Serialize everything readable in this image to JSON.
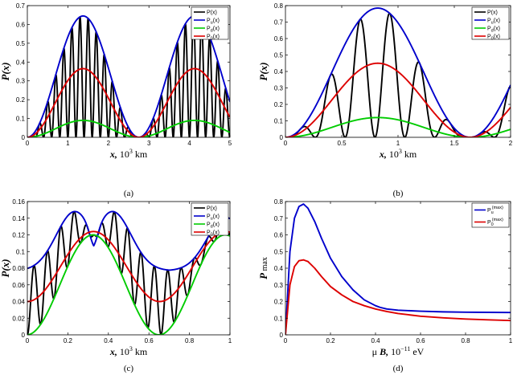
{
  "chart_data": [
    {
      "type": "line",
      "id": "a",
      "caption": "(a)",
      "xlabel": "x,  10³ km",
      "ylabel": "P(x)",
      "xlim": [
        0,
        5
      ],
      "ylim": [
        0,
        0.7
      ],
      "xticks": [
        "0",
        "1",
        "2",
        "3",
        "4",
        "5"
      ],
      "yticks": [
        "0",
        "0.1",
        "0.2",
        "0.3",
        "0.4",
        "0.5",
        "0.6",
        "0.7"
      ],
      "legend_position": "top-right",
      "series": [
        {
          "name": "P(x)",
          "color": "#000000",
          "kind": "osc",
          "env_amp": 0.645,
          "env_period": 2.75,
          "env_phase": 0,
          "osc_period": 0.2
        },
        {
          "name": "Pu(x)",
          "color": "#0000cc",
          "kind": "env",
          "env_amp": 0.645,
          "env_period": 2.75
        },
        {
          "name": "Pd(x)",
          "color": "#00cc00",
          "kind": "env",
          "env_amp": 0.09,
          "env_period": 2.75
        },
        {
          "name": "P0(x)",
          "color": "#dd0000",
          "kind": "env",
          "env_amp": 0.365,
          "env_period": 2.75
        }
      ]
    },
    {
      "type": "line",
      "id": "b",
      "caption": "(b)",
      "xlabel": "x,  10³ km",
      "ylabel": "P(x)",
      "xlim": [
        0,
        2
      ],
      "ylim": [
        0,
        0.8
      ],
      "xticks": [
        "0",
        "0.5",
        "1",
        "1.5",
        "2"
      ],
      "yticks": [
        "0",
        "0.1",
        "0.2",
        "0.3",
        "0.4",
        "0.5",
        "0.6",
        "0.7",
        "0.8"
      ],
      "legend_position": "top-right",
      "series": [
        {
          "name": "P(x)",
          "color": "#000000",
          "kind": "osc",
          "env_amp": 0.785,
          "env_period": 1.64,
          "osc_period": 0.265
        },
        {
          "name": "Pu(x)",
          "color": "#0000cc",
          "kind": "env",
          "env_amp": 0.785,
          "env_period": 1.64
        },
        {
          "name": "Pd(x)",
          "color": "#00cc00",
          "kind": "env",
          "env_amp": 0.12,
          "env_period": 1.64
        },
        {
          "name": "P0(x)",
          "color": "#dd0000",
          "kind": "env",
          "env_amp": 0.45,
          "env_period": 1.64
        }
      ]
    },
    {
      "type": "line",
      "id": "c",
      "caption": "(c)",
      "xlabel": "x,  10³ km",
      "ylabel": "P(x)",
      "xlim": [
        0,
        1
      ],
      "ylim": [
        0,
        0.16
      ],
      "xticks": [
        "0",
        "0.2",
        "0.4",
        "0.6",
        "0.8",
        "1"
      ],
      "yticks": [
        "0",
        "0.02",
        "0.04",
        "0.06",
        "0.08",
        "0.1",
        "0.12",
        "0.14",
        "0.16"
      ],
      "legend_position": "top-right",
      "series": [
        {
          "name": "P(x)",
          "color": "#000000",
          "kind": "osc2",
          "osc_period": 0.066
        },
        {
          "name": "Pu(x)",
          "color": "#0000cc",
          "kind": "upper"
        },
        {
          "name": "Pd(x)",
          "color": "#00cc00",
          "kind": "lower"
        },
        {
          "name": "P0(x)",
          "color": "#dd0000",
          "kind": "mid"
        }
      ]
    },
    {
      "type": "line",
      "id": "d",
      "caption": "(d)",
      "xlabel": "μ B,  10⁻¹¹ eV",
      "ylabel": "P max",
      "xlim": [
        0,
        1
      ],
      "ylim": [
        0,
        0.8
      ],
      "xticks": [
        "0",
        "0.2",
        "0.4",
        "0.6",
        "0.8",
        "1"
      ],
      "yticks": [
        "0",
        "0.1",
        "0.2",
        "0.3",
        "0.4",
        "0.5",
        "0.6",
        "0.7",
        "0.8"
      ],
      "legend_position": "top-right",
      "series": [
        {
          "name": "Pu(max)",
          "color": "#0000cc",
          "x": [
            0,
            0.02,
            0.04,
            0.06,
            0.08,
            0.1,
            0.13,
            0.16,
            0.2,
            0.25,
            0.3,
            0.35,
            0.4,
            0.42,
            0.45,
            0.5,
            0.6,
            0.7,
            0.8,
            0.9,
            1.0
          ],
          "y": [
            0,
            0.5,
            0.7,
            0.77,
            0.785,
            0.76,
            0.68,
            0.58,
            0.46,
            0.35,
            0.27,
            0.21,
            0.175,
            0.165,
            0.155,
            0.148,
            0.142,
            0.138,
            0.136,
            0.135,
            0.134
          ]
        },
        {
          "name": "P0(max)",
          "color": "#dd0000",
          "x": [
            0,
            0.02,
            0.04,
            0.06,
            0.08,
            0.1,
            0.13,
            0.16,
            0.2,
            0.25,
            0.3,
            0.35,
            0.4,
            0.45,
            0.5,
            0.6,
            0.7,
            0.8,
            0.9,
            1.0
          ],
          "y": [
            0,
            0.3,
            0.41,
            0.445,
            0.45,
            0.44,
            0.4,
            0.35,
            0.29,
            0.24,
            0.2,
            0.175,
            0.155,
            0.14,
            0.128,
            0.112,
            0.102,
            0.095,
            0.09,
            0.086
          ]
        }
      ]
    }
  ]
}
